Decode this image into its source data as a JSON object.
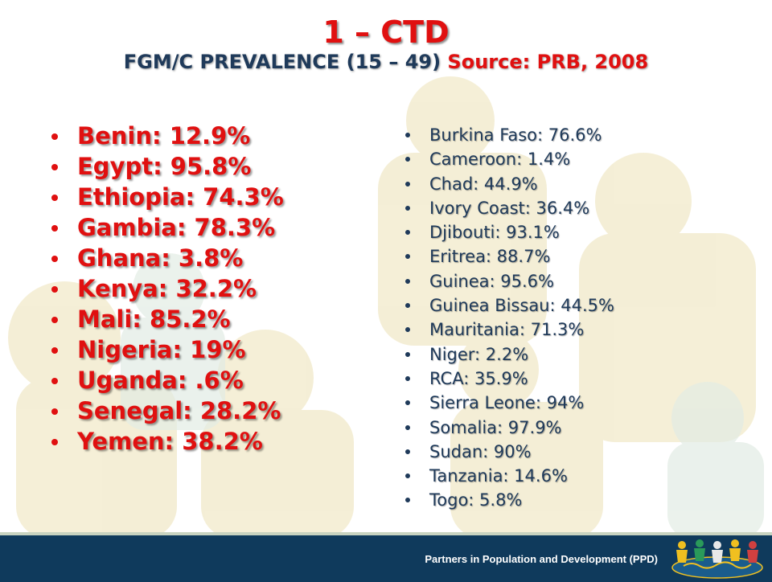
{
  "slide": {
    "title": "1 – CTD",
    "subtitle_main": "FGM/C PREVALENCE (15 – 49)",
    "subtitle_source": "Source: PRB, 2008"
  },
  "left_list": [
    "Benin: 12.9%",
    "Egypt: 95.8%",
    "Ethiopia: 74.3%",
    "Gambia: 78.3%",
    "Ghana: 3.8%",
    "Kenya: 32.2%",
    "Mali: 85.2%",
    "Nigeria: 19%",
    "Uganda: .6%",
    "Senegal: 28.2%",
    "Yemen: 38.2%"
  ],
  "right_list": [
    "Burkina Faso: 76.6%",
    "Cameroon: 1.4%",
    "Chad: 44.9%",
    "Ivory Coast: 36.4%",
    "Djibouti: 93.1%",
    "Eritrea: 88.7%",
    "Guinea: 95.6%",
    "Guinea Bissau: 44.5%",
    "Mauritania: 71.3%",
    "Niger: 2.2%",
    "RCA: 35.9%",
    "Sierra Leone: 94%",
    "Somalia: 97.9%",
    "Sudan: 90%",
    "Tanzania: 14.6%",
    "Togo: 5.8%"
  ],
  "footer": {
    "text": "Partners in Population and Development (PPD)",
    "logo_icon": "ppd-logo-icon"
  },
  "colors": {
    "accent_red": "#e01010",
    "navy": "#1f3a5a",
    "footer_bg": "#0f3a5c",
    "watermark": "#f3ecd0"
  }
}
